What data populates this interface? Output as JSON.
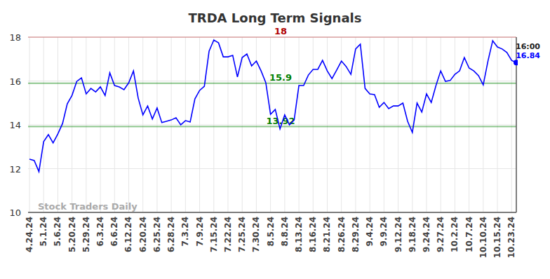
{
  "chart_data": {
    "type": "line",
    "title": "TRDA Long Term Signals",
    "categories": [
      "4.24.24",
      null,
      null,
      "5.1.24",
      null,
      null,
      "5.6.24",
      null,
      null,
      "5.20.24",
      null,
      null,
      "5.29.24",
      null,
      null,
      "6.3.24",
      null,
      null,
      "6.6.24",
      null,
      null,
      "6.12.24",
      null,
      null,
      "6.20.24",
      null,
      null,
      "6.25.24",
      null,
      null,
      "6.28.24",
      null,
      null,
      "7.3.24",
      null,
      null,
      "7.9.24",
      null,
      null,
      "7.15.24",
      null,
      null,
      "7.22.24",
      null,
      null,
      "7.25.24",
      null,
      null,
      "7.30.24",
      null,
      null,
      "8.5.24",
      null,
      null,
      "8.8.24",
      null,
      null,
      "8.13.24",
      null,
      null,
      "8.16.24",
      null,
      null,
      "8.21.24",
      null,
      null,
      "8.26.24",
      null,
      null,
      "8.29.24",
      null,
      null,
      "9.4.24",
      null,
      null,
      "9.9.24",
      null,
      null,
      "9.12.24",
      null,
      null,
      "9.18.24",
      null,
      null,
      "9.24.24",
      null,
      null,
      "9.27.24",
      null,
      null,
      "10.2.24",
      null,
      null,
      "10.7.24",
      null,
      null,
      "10.10.24",
      null,
      null,
      "10.15.24",
      null,
      null,
      "10.23.24",
      null
    ],
    "series": [
      {
        "name": "TRDA",
        "color": "#0000ff",
        "values": [
          12.43,
          12.37,
          11.86,
          13.23,
          13.55,
          13.17,
          13.58,
          14.06,
          14.96,
          15.34,
          15.98,
          16.14,
          15.41,
          15.66,
          15.5,
          15.73,
          15.34,
          16.37,
          15.79,
          15.73,
          15.6,
          15.92,
          16.46,
          15.22,
          14.45,
          14.86,
          14.26,
          14.77,
          14.1,
          14.16,
          14.22,
          14.32,
          14.0,
          14.19,
          14.13,
          15.18,
          15.57,
          15.76,
          17.36,
          17.87,
          17.74,
          17.1,
          17.1,
          17.17,
          16.18,
          17.07,
          17.23,
          16.69,
          16.91,
          16.46,
          15.92,
          14.48,
          14.7,
          13.81,
          14.45,
          14.0,
          14.22,
          15.79,
          15.79,
          16.27,
          16.53,
          16.53,
          16.94,
          16.46,
          16.11,
          16.5,
          16.91,
          16.66,
          16.3,
          17.46,
          17.68,
          15.66,
          15.41,
          15.38,
          14.8,
          15.02,
          14.74,
          14.86,
          14.86,
          14.99,
          14.16,
          13.65,
          14.99,
          14.58,
          15.41,
          15.02,
          15.79,
          16.46,
          15.98,
          16.02,
          16.3,
          16.46,
          17.07,
          16.59,
          16.46,
          16.24,
          15.82,
          16.91,
          17.84,
          17.55,
          17.46,
          17.3,
          16.94,
          16.84
        ]
      }
    ],
    "ylim": [
      10,
      18
    ],
    "yticks": [
      10,
      12,
      14,
      16,
      18
    ],
    "grid": true,
    "reference_lines": [
      {
        "value": 18,
        "label": "18",
        "color": "#b00000"
      },
      {
        "value": 15.9,
        "label": "15.9",
        "color": "#008000"
      },
      {
        "value": 13.92,
        "label": "13.92",
        "color": "#008000"
      }
    ],
    "annotations": [
      {
        "label": "16:00"
      },
      {
        "label": "16.84"
      }
    ],
    "watermark": "Stock Traders Daily"
  }
}
